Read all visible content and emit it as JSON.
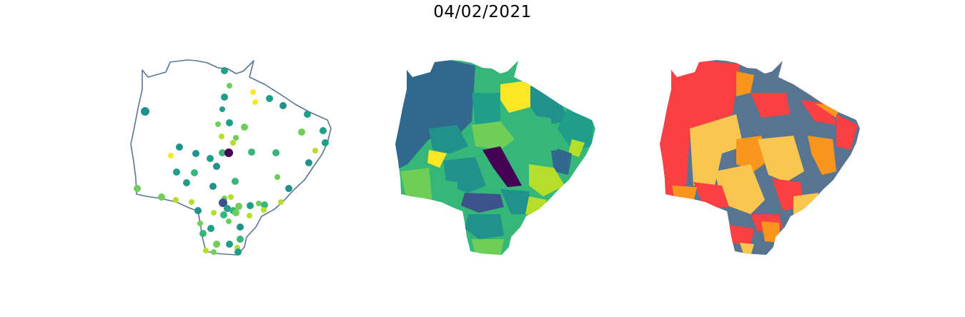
{
  "title": "04/02/2021",
  "colors": {
    "outline": "#5a7590",
    "viridis": [
      "#440154",
      "#3b528b",
      "#31688e",
      "#21918c",
      "#1f9e89",
      "#35b779",
      "#6ece58",
      "#b5de2b",
      "#fde725"
    ],
    "categories": [
      "#f94144",
      "#f8961e",
      "#f9c74f",
      "#577590"
    ]
  },
  "panels": [
    {
      "name": "stations-map",
      "kind": "point-stations"
    },
    {
      "name": "municipal-viridis-map",
      "kind": "choropleth"
    },
    {
      "name": "municipal-category-map",
      "kind": "categorical-choropleth"
    }
  ]
}
